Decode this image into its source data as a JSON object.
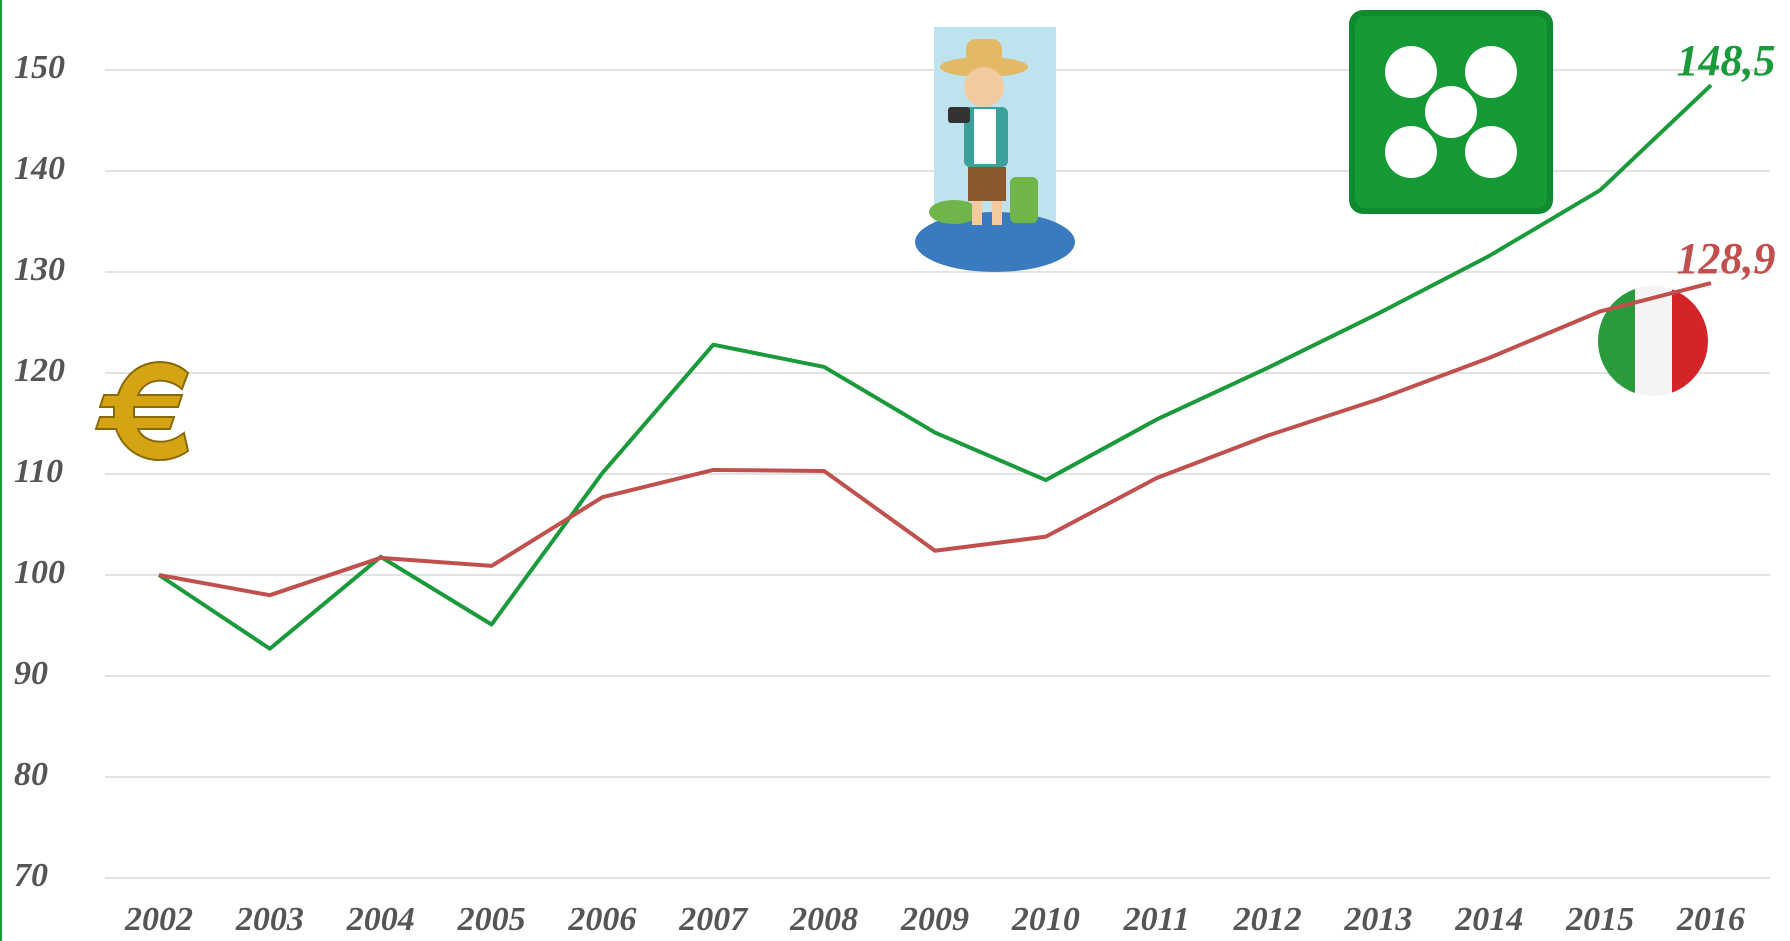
{
  "chart_data": {
    "type": "line",
    "x": [
      2002,
      2003,
      2004,
      2005,
      2006,
      2007,
      2008,
      2009,
      2010,
      2011,
      2012,
      2013,
      2014,
      2015,
      2016
    ],
    "xlim": [
      2002,
      2016
    ],
    "xticks": [
      2002,
      2003,
      2004,
      2005,
      2006,
      2007,
      2008,
      2009,
      2010,
      2011,
      2012,
      2013,
      2014,
      2015,
      2016
    ],
    "ylim": [
      70,
      150
    ],
    "yticks": [
      70,
      80,
      90,
      100,
      110,
      120,
      130,
      140,
      150
    ],
    "grid": true,
    "series": [
      {
        "color": "#1a9a3a",
        "values": [
          100,
          92.7,
          101.8,
          95.1,
          110.1,
          122.8,
          120.6,
          114.1,
          109.4,
          115.4,
          120.5,
          125.9,
          131.6,
          138.1,
          148.5
        ],
        "value_labels": [
          null,
          null,
          null,
          null,
          null,
          null,
          null,
          null,
          null,
          null,
          null,
          null,
          null,
          null,
          "148,5"
        ]
      },
      {
        "color": "#c0504d",
        "values": [
          100,
          98.0,
          101.7,
          100.9,
          107.7,
          110.4,
          110.3,
          102.4,
          103.8,
          109.6,
          113.8,
          117.4,
          121.5,
          126.1,
          128.9
        ],
        "value_labels": [
          null,
          null,
          null,
          null,
          null,
          null,
          null,
          null,
          null,
          null,
          null,
          null,
          null,
          null,
          "128,9"
        ]
      }
    ]
  }
}
